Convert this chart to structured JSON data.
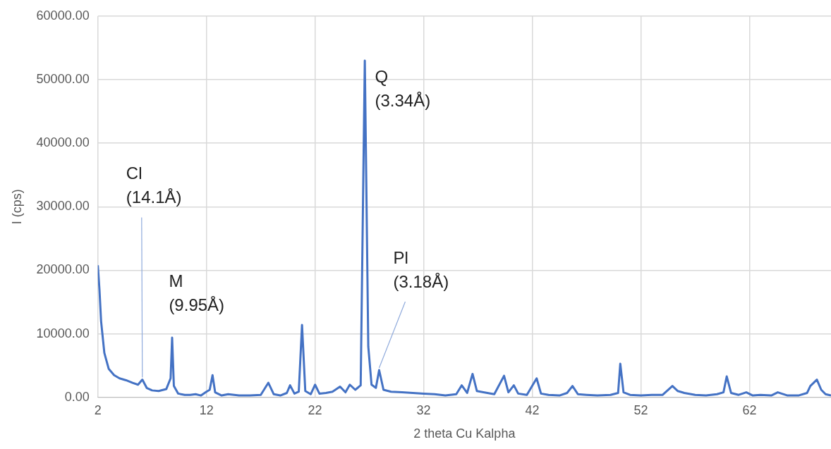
{
  "chart_data": {
    "type": "line",
    "xlabel": "2 theta Cu Kalpha",
    "ylabel": "I (cps)",
    "xlim": [
      2,
      69.5
    ],
    "xticks": [
      2,
      12,
      22,
      32,
      42,
      52,
      62
    ],
    "ylim": [
      0,
      60000
    ],
    "yticks": [
      {
        "value": 0,
        "label": "0.00"
      },
      {
        "value": 10000,
        "label": "10000.00"
      },
      {
        "value": 20000,
        "label": "20000.00"
      },
      {
        "value": 30000,
        "label": "30000.00"
      },
      {
        "value": 40000,
        "label": "40000.00"
      },
      {
        "value": 50000,
        "label": "50000.00"
      },
      {
        "value": 60000,
        "label": "60000.00"
      }
    ],
    "grid": true,
    "legend": false,
    "marker": "none",
    "line_style": "solid",
    "annotations": [
      {
        "text": "Cl\n(14.1Å)",
        "x": 6.1,
        "y": 2800
      },
      {
        "text": "M\n(9.95Å)",
        "x": 8.8,
        "y": 9400
      },
      {
        "text": "Q\n(3.34Å)",
        "x": 26.6,
        "y": 53000
      },
      {
        "text": "Pl\n(3.18Å)",
        "x": 27.9,
        "y": 4300
      }
    ],
    "series": [
      {
        "color": "#4472c4",
        "x": [
          2,
          2.15,
          2.3,
          2.6,
          3,
          3.5,
          4,
          4.6,
          5.2,
          5.7,
          6.1,
          6.5,
          7,
          7.6,
          8.3,
          8.7,
          8.84,
          9,
          9.4,
          10,
          10.5,
          11,
          11.5,
          12,
          12.3,
          12.56,
          12.8,
          13.4,
          14,
          15,
          16,
          17,
          17.7,
          18.2,
          18.8,
          19.4,
          19.7,
          20.1,
          20.5,
          20.8,
          21.1,
          21.6,
          22,
          22.4,
          23,
          23.6,
          24.3,
          24.8,
          25.2,
          25.7,
          26.2,
          26.58,
          26.9,
          27.2,
          27.6,
          27.9,
          28.3,
          29,
          30,
          31,
          32,
          33,
          34,
          35,
          35.5,
          36,
          36.5,
          36.9,
          37.5,
          38.5,
          39.4,
          39.8,
          40.3,
          40.7,
          41.5,
          42.4,
          42.8,
          43.5,
          44.5,
          45.2,
          45.7,
          46.2,
          47,
          48,
          49.2,
          49.9,
          50.1,
          50.4,
          51,
          52,
          53,
          54,
          54.9,
          55.4,
          56,
          57,
          58,
          59,
          59.6,
          59.9,
          60.3,
          61,
          61.7,
          62.3,
          63,
          64,
          64.6,
          65.5,
          66.5,
          67.3,
          67.6,
          68.2,
          68.6,
          69,
          69.5
        ],
        "values": [
          20800,
          17000,
          12000,
          7000,
          4500,
          3500,
          3000,
          2700,
          2300,
          2000,
          2800,
          1500,
          1100,
          1000,
          1300,
          3000,
          9400,
          1800,
          600,
          400,
          400,
          500,
          300,
          900,
          1200,
          3500,
          800,
          300,
          500,
          300,
          300,
          400,
          2300,
          500,
          300,
          700,
          1900,
          600,
          900,
          11400,
          1000,
          500,
          2000,
          600,
          700,
          900,
          1700,
          800,
          2000,
          1200,
          1900,
          53000,
          8000,
          2000,
          1500,
          4300,
          1200,
          900,
          800,
          700,
          600,
          500,
          300,
          500,
          1900,
          700,
          3700,
          1000,
          800,
          500,
          3400,
          800,
          1900,
          600,
          400,
          3000,
          600,
          400,
          300,
          700,
          1800,
          500,
          400,
          300,
          400,
          700,
          5300,
          800,
          400,
          300,
          400,
          400,
          1800,
          1000,
          700,
          400,
          300,
          500,
          800,
          3300,
          700,
          400,
          800,
          300,
          400,
          300,
          800,
          300,
          300,
          700,
          1800,
          2800,
          1200,
          500,
          300
        ]
      }
    ]
  }
}
